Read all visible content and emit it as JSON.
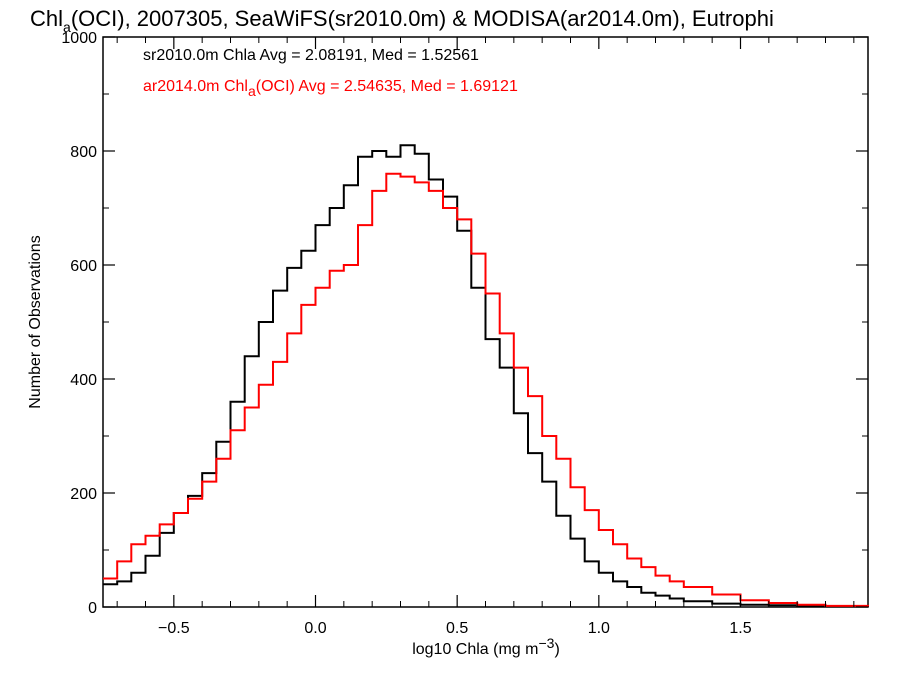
{
  "chart_data": {
    "type": "line",
    "style": "step-histogram",
    "title": {
      "prefix": "Chl",
      "subscript": "a",
      "rest": "(OCI), 2007305, SeaWiFS(sr2010.0m) & MODISA(ar2014.0m), Eutrophi"
    },
    "xlabel": {
      "prefix": "log10 Chla (mg m",
      "superscript": "−3",
      "suffix": ")"
    },
    "ylabel": "Number of Observations",
    "xlim": [
      -0.75,
      1.95
    ],
    "ylim": [
      0,
      1000
    ],
    "x_ticks": [
      -0.5,
      0.0,
      0.5,
      1.0,
      1.5
    ],
    "x_tick_labels": [
      "−0.5",
      "0.0",
      "0.5",
      "1.0",
      "1.5"
    ],
    "y_ticks": [
      0,
      200,
      400,
      600,
      800,
      1000
    ],
    "y_tick_labels": [
      "0",
      "200",
      "400",
      "600",
      "800",
      "1000"
    ],
    "grid": false,
    "legend_position": "top-left",
    "legend": [
      {
        "text": "sr2010.0m Chla Avg = 2.08191, Med = 1.52561",
        "color": "#000000"
      },
      {
        "prefix": "ar2014.0m Chl",
        "subscript": "a",
        "rest": "(OCI) Avg = 2.54635, Med = 1.69121",
        "color": "#ff0000"
      }
    ],
    "series": [
      {
        "color": "#000000",
        "x": [
          -0.75,
          -0.7,
          -0.65,
          -0.6,
          -0.55,
          -0.5,
          -0.45,
          -0.4,
          -0.35,
          -0.3,
          -0.25,
          -0.2,
          -0.15,
          -0.1,
          -0.05,
          0.0,
          0.05,
          0.1,
          0.15,
          0.2,
          0.25,
          0.3,
          0.35,
          0.4,
          0.45,
          0.5,
          0.55,
          0.6,
          0.65,
          0.7,
          0.75,
          0.8,
          0.85,
          0.9,
          0.95,
          1.0,
          1.05,
          1.1,
          1.15,
          1.2,
          1.25,
          1.3,
          1.4,
          1.5,
          1.6,
          1.7,
          1.8,
          1.95
        ],
        "y": [
          40,
          45,
          60,
          90,
          130,
          165,
          195,
          235,
          290,
          360,
          440,
          500,
          555,
          595,
          625,
          670,
          700,
          740,
          790,
          800,
          790,
          810,
          795,
          750,
          720,
          660,
          560,
          470,
          420,
          340,
          270,
          220,
          160,
          120,
          80,
          60,
          45,
          35,
          25,
          20,
          15,
          10,
          6,
          4,
          3,
          2,
          1,
          0
        ]
      },
      {
        "color": "#ff0000",
        "x": [
          -0.75,
          -0.7,
          -0.65,
          -0.6,
          -0.55,
          -0.5,
          -0.45,
          -0.4,
          -0.35,
          -0.3,
          -0.25,
          -0.2,
          -0.15,
          -0.1,
          -0.05,
          0.0,
          0.05,
          0.1,
          0.15,
          0.2,
          0.25,
          0.3,
          0.35,
          0.4,
          0.45,
          0.5,
          0.55,
          0.6,
          0.65,
          0.7,
          0.75,
          0.8,
          0.85,
          0.9,
          0.95,
          1.0,
          1.05,
          1.1,
          1.15,
          1.2,
          1.25,
          1.3,
          1.4,
          1.5,
          1.6,
          1.7,
          1.8,
          1.95
        ],
        "y": [
          50,
          80,
          110,
          125,
          145,
          165,
          190,
          220,
          260,
          310,
          350,
          390,
          430,
          480,
          530,
          560,
          590,
          600,
          670,
          730,
          760,
          755,
          745,
          730,
          700,
          680,
          620,
          550,
          480,
          420,
          370,
          300,
          260,
          210,
          170,
          135,
          110,
          85,
          70,
          55,
          45,
          35,
          22,
          12,
          7,
          4,
          2,
          1
        ]
      }
    ]
  }
}
